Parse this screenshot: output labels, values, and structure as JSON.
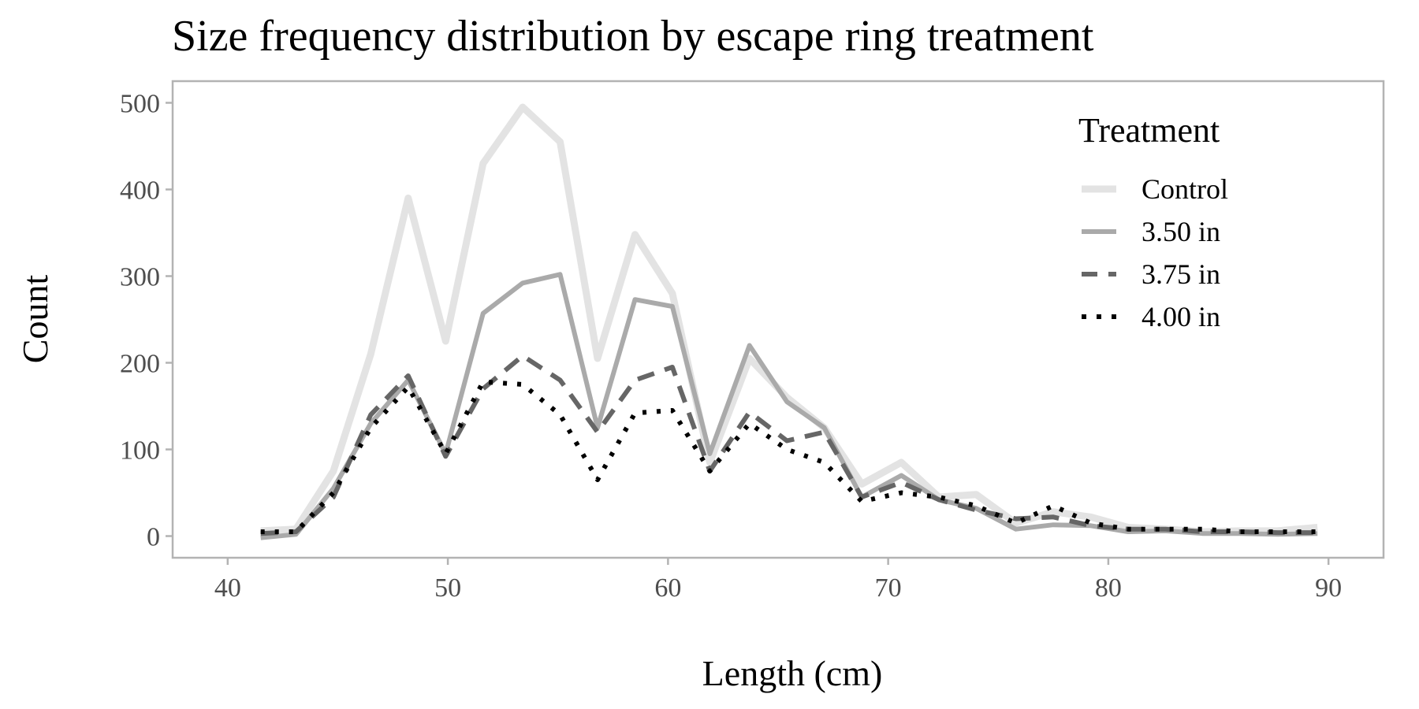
{
  "chart_data": {
    "type": "line",
    "title": "Size frequency distribution by escape ring treatment",
    "xlabel": "Length (cm)",
    "ylabel": "Count",
    "xlim": [
      37.5,
      92.5
    ],
    "ylim": [
      -25,
      525
    ],
    "x_ticks": [
      40,
      50,
      60,
      70,
      80,
      90
    ],
    "y_ticks": [
      0,
      100,
      200,
      300,
      400,
      500
    ],
    "grid": false,
    "legend": {
      "title": "Treatment",
      "position": "top-right"
    },
    "x": [
      41.5,
      43.1,
      44.8,
      46.5,
      48.2,
      49.9,
      51.6,
      53.4,
      55.1,
      56.8,
      58.5,
      60.2,
      61.9,
      63.7,
      65.4,
      67.1,
      68.8,
      70.6,
      72.3,
      74.0,
      75.8,
      77.5,
      79.2,
      80.9,
      82.6,
      84.3,
      86.0,
      87.7,
      89.5
    ],
    "series": [
      {
        "name": "Control",
        "color": "#e3e3e3",
        "dash": "solid",
        "width": 9,
        "values": [
          6,
          8,
          75,
          210,
          390,
          225,
          430,
          495,
          455,
          205,
          348,
          280,
          85,
          205,
          160,
          125,
          60,
          85,
          45,
          48,
          15,
          28,
          22,
          10,
          8,
          5,
          6,
          6,
          10
        ]
      },
      {
        "name": "3.50 in",
        "color": "#aaaaaa",
        "dash": "solid",
        "width": 6,
        "values": [
          -2,
          2,
          55,
          130,
          180,
          95,
          257,
          292,
          302,
          125,
          273,
          265,
          95,
          220,
          155,
          125,
          45,
          70,
          42,
          32,
          8,
          13,
          12,
          5,
          6,
          3,
          3,
          2,
          3
        ]
      },
      {
        "name": "3.75 in",
        "color": "#666666",
        "dash": "dashed",
        "width": 6,
        "values": [
          3,
          5,
          45,
          140,
          185,
          92,
          170,
          208,
          180,
          120,
          180,
          195,
          75,
          143,
          110,
          120,
          45,
          62,
          42,
          30,
          20,
          22,
          12,
          8,
          8,
          5,
          5,
          4,
          4
        ]
      },
      {
        "name": "4.00 in",
        "color": "#000000",
        "dash": "dotted",
        "width": 6,
        "values": [
          5,
          5,
          50,
          125,
          172,
          95,
          178,
          175,
          140,
          65,
          142,
          145,
          75,
          130,
          100,
          85,
          40,
          50,
          45,
          35,
          15,
          35,
          15,
          8,
          8,
          8,
          5,
          5,
          5
        ]
      }
    ]
  }
}
